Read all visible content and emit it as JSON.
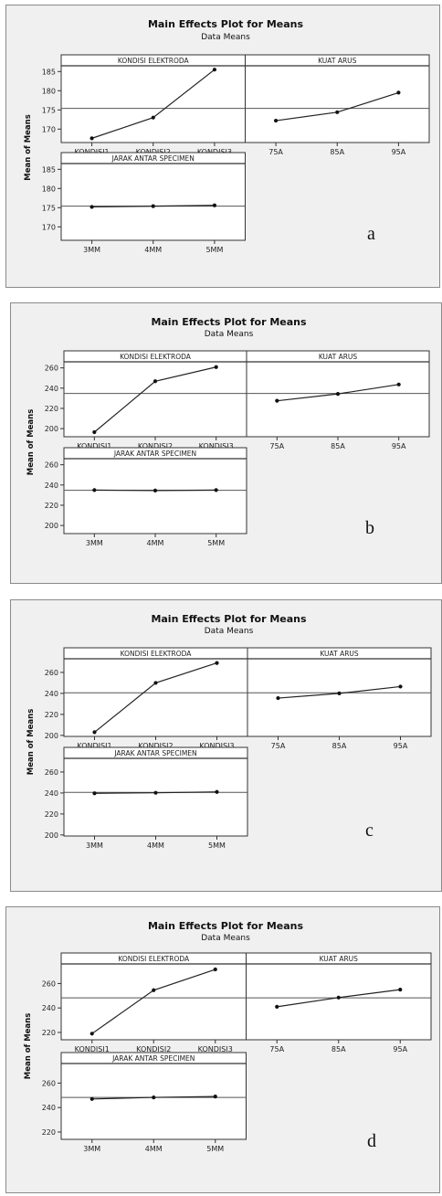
{
  "figure": {
    "title": "Main Effects Plot for Means",
    "subtitle": "Data Means",
    "ylabel": "Mean of Means",
    "factors": [
      "KONDISI ELEKTRODA",
      "KUAT ARUS",
      "JARAK ANTAR SPECIMEN"
    ],
    "levels": [
      [
        "KONDISI1",
        "KONDISI2",
        "KONDISI3"
      ],
      [
        "75A",
        "85A",
        "95A"
      ],
      [
        "3MM",
        "4MM",
        "5MM"
      ]
    ]
  },
  "chart_data": [
    {
      "type": "line",
      "panel_letter": "a",
      "title": "Main Effects Plot for Means",
      "subtitle": "Data Means",
      "ylabel": "Mean of Means",
      "yticks": [
        170,
        175,
        180,
        185
      ],
      "ylim": [
        166.5,
        186.5
      ],
      "grand_mean": 175.4,
      "series": [
        {
          "name": "KONDISI ELEKTRODA",
          "x": [
            "KONDISI1",
            "KONDISI2",
            "KONDISI3"
          ],
          "values": [
            167.6,
            173.0,
            185.5
          ]
        },
        {
          "name": "KUAT ARUS",
          "x": [
            "75A",
            "85A",
            "95A"
          ],
          "values": [
            172.2,
            174.4,
            179.5
          ]
        },
        {
          "name": "JARAK ANTAR SPECIMEN",
          "x": [
            "3MM",
            "4MM",
            "5MM"
          ],
          "values": [
            175.2,
            175.4,
            175.6
          ]
        }
      ]
    },
    {
      "type": "line",
      "panel_letter": "b",
      "title": "Main Effects Plot for Means",
      "subtitle": "Data Means",
      "ylabel": "Mean of Means",
      "yticks": [
        200,
        220,
        240,
        260
      ],
      "ylim": [
        192,
        266
      ],
      "grand_mean": 234.8,
      "series": [
        {
          "name": "KONDISI ELEKTRODA",
          "x": [
            "KONDISI1",
            "KONDISI2",
            "KONDISI3"
          ],
          "values": [
            196.5,
            246.8,
            260.8
          ]
        },
        {
          "name": "KUAT ARUS",
          "x": [
            "75A",
            "85A",
            "95A"
          ],
          "values": [
            227.5,
            234.3,
            243.6
          ]
        },
        {
          "name": "JARAK ANTAR SPECIMEN",
          "x": [
            "3MM",
            "4MM",
            "5MM"
          ],
          "values": [
            235.0,
            234.5,
            235.0
          ]
        }
      ]
    },
    {
      "type": "line",
      "panel_letter": "c",
      "title": "Main Effects Plot for Means",
      "subtitle": "Data Means",
      "ylabel": "Mean of Means",
      "yticks": [
        200,
        220,
        240,
        260
      ],
      "ylim": [
        199,
        273
      ],
      "grand_mean": 240.6,
      "series": [
        {
          "name": "KONDISI ELEKTRODA",
          "x": [
            "KONDISI1",
            "KONDISI2",
            "KONDISI3"
          ],
          "values": [
            203.0,
            250.0,
            269.0
          ]
        },
        {
          "name": "KUAT ARUS",
          "x": [
            "75A",
            "85A",
            "95A"
          ],
          "values": [
            235.5,
            240.0,
            246.5
          ]
        },
        {
          "name": "JARAK ANTAR SPECIMEN",
          "x": [
            "3MM",
            "4MM",
            "5MM"
          ],
          "values": [
            239.7,
            240.2,
            241.0
          ]
        }
      ]
    },
    {
      "type": "line",
      "panel_letter": "d",
      "title": "Main Effects Plot for Means",
      "subtitle": "Data Means",
      "ylabel": "Mean of Means",
      "yticks": [
        220,
        240,
        260
      ],
      "ylim": [
        214,
        276
      ],
      "grand_mean": 248.3,
      "series": [
        {
          "name": "KONDISI ELEKTRODA",
          "x": [
            "KONDISI1",
            "KONDISI2",
            "KONDISI3"
          ],
          "values": [
            219.0,
            254.5,
            271.5
          ]
        },
        {
          "name": "KUAT ARUS",
          "x": [
            "75A",
            "85A",
            "95A"
          ],
          "values": [
            241.0,
            248.5,
            255.0
          ]
        },
        {
          "name": "JARAK ANTAR SPECIMEN",
          "x": [
            "3MM",
            "4MM",
            "5MM"
          ],
          "values": [
            247.0,
            248.3,
            249.0
          ]
        }
      ]
    }
  ]
}
